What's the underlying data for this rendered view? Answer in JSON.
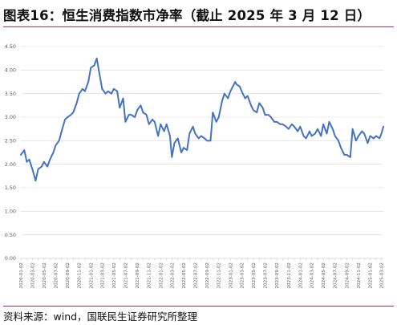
{
  "title": "图表16：恒生消费指数市净率（截止 2025 年 3 月 12 日）",
  "source": "资料来源：wind，国联民生证券研究所整理",
  "colors": {
    "line": "#4472c4",
    "accent_rule": "#c8284e",
    "grid": "#d9d9d9"
  },
  "chart_data": {
    "type": "line",
    "title": "",
    "xlabel": "",
    "ylabel": "",
    "ylim": [
      0,
      4.5
    ],
    "y_ticks": [
      "0.00",
      "0.50",
      "1.00",
      "1.50",
      "2.00",
      "2.50",
      "3.00",
      "3.50",
      "4.00",
      "4.50"
    ],
    "x_ticks": [
      "2020-01-02",
      "2020-02-02",
      "2020-03-02",
      "2020-04-02",
      "2020-05-02",
      "2020-06-02",
      "2020-07-02",
      "2020-08-02",
      "2020-09-02",
      "2020-10-02",
      "2020-11-02",
      "2020-12-02",
      "2021-01-02",
      "2021-02-02",
      "2021-03-02",
      "2021-04-02",
      "2021-05-02",
      "2021-06-02",
      "2021-07-02",
      "2021-08-02",
      "2021-09-02",
      "2021-10-02",
      "2021-11-02",
      "2021-12-02",
      "2022-01-02",
      "2022-02-02",
      "2022-03-02",
      "2022-04-02",
      "2022-05-02",
      "2022-06-02",
      "2022-07-02",
      "2022-08-02",
      "2022-09-02",
      "2022-10-02",
      "2022-11-02",
      "2022-12-02",
      "2023-01-02",
      "2023-02-02",
      "2023-03-02",
      "2023-04-02",
      "2023-05-02",
      "2023-06-02",
      "2023-07-02",
      "2023-08-02",
      "2023-09-02",
      "2023-10-02",
      "2023-11-02",
      "2023-12-02",
      "2024-01-02",
      "2024-02-02",
      "2024-03-02",
      "2024-04-02",
      "2024-05-02",
      "2024-06-02",
      "2024-07-02",
      "2024-08-02",
      "2024-09-02",
      "2024-10-02",
      "2024-11-02",
      "2024-12-02",
      "2025-01-02",
      "2025-02-02",
      "2025-03-02"
    ],
    "x_tick_labels_shown": [
      "2020-01-02",
      "2020-03-02",
      "2020-05-02",
      "2020-07-02",
      "2020-09-02",
      "2020-11-02",
      "2021-01-02",
      "2021-03-02",
      "2021-05-02",
      "2021-07-02",
      "2021-09-02",
      "2021-11-02",
      "2022-01-02",
      "2022-03-02",
      "2022-05-02",
      "2022-07-02",
      "2022-09-02",
      "2022-11-02",
      "2023-01-02",
      "2023-03-02",
      "2023-05-02",
      "2023-07-02",
      "2023-09-02",
      "2023-11-02",
      "2024-01-02",
      "2024-03-02",
      "2024-05-02",
      "2024-07-02",
      "2024-09-02",
      "2024-11-02",
      "2025-01-02",
      "2025-03-02"
    ],
    "series": [
      {
        "x": [
          "2020-01-02",
          "2020-01-20",
          "2020-02-02",
          "2020-02-15",
          "2020-03-02",
          "2020-03-19",
          "2020-04-02",
          "2020-04-20",
          "2020-05-02",
          "2020-05-20",
          "2020-06-02",
          "2020-06-20",
          "2020-07-02",
          "2020-07-20",
          "2020-08-02",
          "2020-08-20",
          "2020-09-02",
          "2020-09-20",
          "2020-10-02",
          "2020-10-20",
          "2020-11-02",
          "2020-11-20",
          "2020-12-02",
          "2020-12-20",
          "2021-01-02",
          "2021-01-20",
          "2021-02-02",
          "2021-02-17",
          "2021-03-02",
          "2021-03-20",
          "2021-04-02",
          "2021-04-20",
          "2021-05-02",
          "2021-05-20",
          "2021-06-02",
          "2021-06-20",
          "2021-07-02",
          "2021-07-20",
          "2021-08-02",
          "2021-08-20",
          "2021-09-02",
          "2021-09-20",
          "2021-10-02",
          "2021-10-20",
          "2021-11-02",
          "2021-11-20",
          "2021-12-02",
          "2021-12-20",
          "2022-01-02",
          "2022-01-20",
          "2022-02-02",
          "2022-02-20",
          "2022-03-02",
          "2022-03-15",
          "2022-04-02",
          "2022-04-20",
          "2022-05-02",
          "2022-05-20",
          "2022-06-02",
          "2022-06-20",
          "2022-07-02",
          "2022-07-20",
          "2022-08-02",
          "2022-08-20",
          "2022-09-02",
          "2022-09-20",
          "2022-10-02",
          "2022-10-20",
          "2022-11-02",
          "2022-11-20",
          "2022-12-02",
          "2022-12-20",
          "2023-01-02",
          "2023-01-27",
          "2023-02-02",
          "2023-02-20",
          "2023-03-02",
          "2023-03-20",
          "2023-04-02",
          "2023-04-20",
          "2023-05-02",
          "2023-05-20",
          "2023-06-02",
          "2023-06-20",
          "2023-07-02",
          "2023-07-20",
          "2023-08-02",
          "2023-08-20",
          "2023-09-02",
          "2023-09-20",
          "2023-10-02",
          "2023-10-20",
          "2023-11-02",
          "2023-11-20",
          "2023-12-02",
          "2023-12-20",
          "2024-01-02",
          "2024-01-20",
          "2024-02-02",
          "2024-02-20",
          "2024-03-02",
          "2024-03-20",
          "2024-04-02",
          "2024-04-20",
          "2024-05-02",
          "2024-05-20",
          "2024-06-02",
          "2024-06-20",
          "2024-07-02",
          "2024-07-20",
          "2024-08-02",
          "2024-08-20",
          "2024-09-02",
          "2024-09-20",
          "2024-10-02",
          "2024-10-20",
          "2024-11-02",
          "2024-11-20",
          "2024-12-02",
          "2024-12-20",
          "2025-01-02",
          "2025-01-20",
          "2025-02-02",
          "2025-02-20",
          "2025-03-02",
          "2025-03-12"
        ],
        "values": [
          2.2,
          2.3,
          2.05,
          2.1,
          1.9,
          1.65,
          1.9,
          1.95,
          2.05,
          1.95,
          2.1,
          2.25,
          2.4,
          2.5,
          2.7,
          2.95,
          3.0,
          3.05,
          3.1,
          3.3,
          3.5,
          3.6,
          3.55,
          3.75,
          4.05,
          4.1,
          4.25,
          3.9,
          3.6,
          3.5,
          3.55,
          3.5,
          3.6,
          3.55,
          3.2,
          3.4,
          2.9,
          3.05,
          3.05,
          3.0,
          3.15,
          3.25,
          3.1,
          3.05,
          2.85,
          2.95,
          2.9,
          2.6,
          2.85,
          2.7,
          2.85,
          2.6,
          2.15,
          2.45,
          2.55,
          2.25,
          2.35,
          2.3,
          2.65,
          2.8,
          2.65,
          2.55,
          2.6,
          2.55,
          2.5,
          2.5,
          3.1,
          2.9,
          3.0,
          3.35,
          3.5,
          3.4,
          3.55,
          3.75,
          3.7,
          3.65,
          3.55,
          3.4,
          3.45,
          3.25,
          3.15,
          3.1,
          3.3,
          3.2,
          3.05,
          3.05,
          3.0,
          2.9,
          2.9,
          2.85,
          2.85,
          2.8,
          2.75,
          2.85,
          2.8,
          2.7,
          2.8,
          2.6,
          2.55,
          2.7,
          2.6,
          2.65,
          2.75,
          2.6,
          2.85,
          2.65,
          2.9,
          2.75,
          2.6,
          2.5,
          2.35,
          2.2,
          2.2,
          2.15,
          2.75,
          2.5,
          2.6,
          2.7,
          2.65,
          2.45,
          2.6,
          2.55,
          2.6,
          2.55,
          2.65,
          2.8
        ]
      }
    ],
    "grid": "horizontal",
    "legend": "none"
  }
}
